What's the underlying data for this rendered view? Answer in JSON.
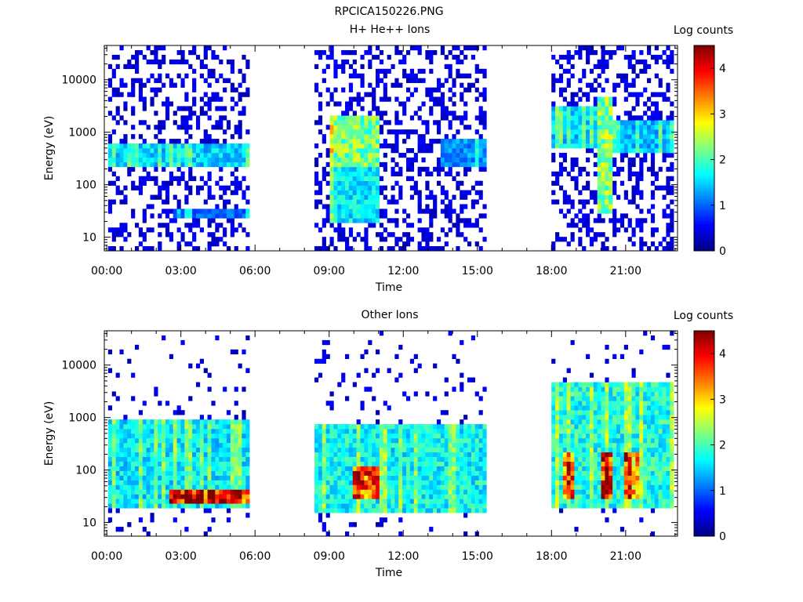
{
  "figure": {
    "title": "RPCICA150226.PNG"
  },
  "chart_data": [
    {
      "type": "heatmap",
      "title": "H+ He++ Ions",
      "xlabel": "Time",
      "ylabel": "Energy (eV)",
      "xticks": [
        "00:00",
        "03:00",
        "06:00",
        "09:00",
        "12:00",
        "15:00",
        "18:00",
        "21:00"
      ],
      "xtick_hours": [
        0,
        3,
        6,
        9,
        12,
        15,
        18,
        21
      ],
      "xlim_hours": [
        -0.1,
        23.1
      ],
      "yscale": "log",
      "ylim": [
        5.5,
        45000
      ],
      "yticks": [
        "10",
        "100",
        "1000",
        "10000"
      ],
      "ytick_values": [
        10,
        100,
        1000,
        10000
      ],
      "colorbar": {
        "label": "Log counts",
        "range": [
          0,
          4.5
        ],
        "ticks": [
          "0",
          "1",
          "2",
          "3",
          "4"
        ]
      },
      "data_gaps_hours": [
        [
          5.8,
          8.4
        ],
        [
          15.4,
          18.0
        ]
      ],
      "regions": [
        {
          "t": [
            0.0,
            5.8
          ],
          "e": [
            200,
            600
          ],
          "level": 1.5
        },
        {
          "t": [
            2.7,
            5.8
          ],
          "e": [
            25,
            35
          ],
          "level": 1.0
        },
        {
          "t": [
            9.0,
            11.0
          ],
          "e": [
            200,
            2000
          ],
          "level": 2.2
        },
        {
          "t": [
            9.0,
            11.0
          ],
          "e": [
            20,
            200
          ],
          "level": 1.6
        },
        {
          "t": [
            13.5,
            15.3
          ],
          "e": [
            200,
            700
          ],
          "level": 1.2
        },
        {
          "t": [
            18.0,
            20.0
          ],
          "e": [
            500,
            3000
          ],
          "level": 1.5
        },
        {
          "t": [
            19.9,
            20.5
          ],
          "e": [
            30,
            5000
          ],
          "level": 2.3
        },
        {
          "t": [
            20.5,
            23.0
          ],
          "e": [
            400,
            1800
          ],
          "level": 1.4
        }
      ]
    },
    {
      "type": "heatmap",
      "title": "Other Ions",
      "xlabel": "Time",
      "ylabel": "Energy (eV)",
      "xticks": [
        "00:00",
        "03:00",
        "06:00",
        "09:00",
        "12:00",
        "15:00",
        "18:00",
        "21:00"
      ],
      "xtick_hours": [
        0,
        3,
        6,
        9,
        12,
        15,
        18,
        21
      ],
      "xlim_hours": [
        -0.1,
        23.1
      ],
      "yscale": "log",
      "ylim": [
        5.5,
        45000
      ],
      "yticks": [
        "10",
        "100",
        "1000",
        "10000"
      ],
      "ytick_values": [
        10,
        100,
        1000,
        10000
      ],
      "colorbar": {
        "label": "Log counts",
        "range": [
          0,
          4.5
        ],
        "ticks": [
          "0",
          "1",
          "2",
          "3",
          "4"
        ]
      },
      "data_gaps_hours": [
        [
          5.8,
          8.4
        ],
        [
          15.4,
          18.0
        ]
      ],
      "regions": [
        {
          "t": [
            0.0,
            5.8
          ],
          "e": [
            20,
            1000
          ],
          "level": 1.6
        },
        {
          "t": [
            2.5,
            5.8
          ],
          "e": [
            22,
            40
          ],
          "level": 3.8
        },
        {
          "t": [
            8.4,
            15.4
          ],
          "e": [
            15,
            800
          ],
          "level": 1.7
        },
        {
          "t": [
            10.0,
            11.0
          ],
          "e": [
            30,
            120
          ],
          "level": 3.6
        },
        {
          "t": [
            18.0,
            23.0
          ],
          "e": [
            20,
            5000
          ],
          "level": 1.8
        },
        {
          "t": [
            18.5,
            19.0
          ],
          "e": [
            30,
            200
          ],
          "level": 3.5
        },
        {
          "t": [
            20.0,
            20.5
          ],
          "e": [
            30,
            200
          ],
          "level": 3.9
        },
        {
          "t": [
            21.0,
            21.5
          ],
          "e": [
            30,
            200
          ],
          "level": 3.2
        }
      ]
    }
  ]
}
